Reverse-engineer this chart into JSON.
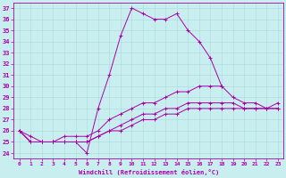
{
  "xlabel": "Windchill (Refroidissement éolien,°C)",
  "background_color": "#c8eef0",
  "grid_color": "#b0dde0",
  "line_color": "#aa00aa",
  "xlim": [
    -0.5,
    23.5
  ],
  "ylim": [
    23.5,
    37.5
  ],
  "yticks": [
    24,
    25,
    26,
    27,
    28,
    29,
    30,
    31,
    32,
    33,
    34,
    35,
    36,
    37
  ],
  "xticks": [
    0,
    1,
    2,
    3,
    4,
    5,
    6,
    7,
    8,
    9,
    10,
    11,
    12,
    13,
    14,
    15,
    16,
    17,
    18,
    19,
    20,
    21,
    22,
    23
  ],
  "series": [
    {
      "x": [
        0,
        1,
        2,
        3,
        4,
        5,
        6,
        7,
        8,
        9,
        10,
        11,
        12,
        13,
        14,
        15,
        16,
        17,
        18
      ],
      "y": [
        26.0,
        25.0,
        25.0,
        25.0,
        25.0,
        25.0,
        24.0,
        28.0,
        31.0,
        34.5,
        37.0,
        36.5,
        36.0,
        36.0,
        36.5,
        35.0,
        34.0,
        32.5,
        30.0
      ]
    },
    {
      "x": [
        0,
        1,
        2,
        3,
        4,
        5,
        6,
        7,
        8,
        9,
        10,
        11,
        12,
        13,
        14,
        15,
        16,
        17,
        18,
        19,
        20,
        21,
        22,
        23
      ],
      "y": [
        26.0,
        25.0,
        25.0,
        25.0,
        25.5,
        25.5,
        25.5,
        26.0,
        27.0,
        27.5,
        28.0,
        28.5,
        28.5,
        29.0,
        29.5,
        29.5,
        30.0,
        30.0,
        30.0,
        29.0,
        28.5,
        28.5,
        28.0,
        28.0
      ]
    },
    {
      "x": [
        0,
        1,
        2,
        3,
        4,
        5,
        6,
        7,
        8,
        9,
        10,
        11,
        12,
        13,
        14,
        15,
        16,
        17,
        18,
        19,
        20,
        21,
        22,
        23
      ],
      "y": [
        26.0,
        25.0,
        25.0,
        25.0,
        25.0,
        25.0,
        25.0,
        25.5,
        26.0,
        26.5,
        27.0,
        27.5,
        27.5,
        28.0,
        28.0,
        28.5,
        28.5,
        28.5,
        28.5,
        28.5,
        28.0,
        28.0,
        28.0,
        28.0
      ]
    },
    {
      "x": [
        0,
        1,
        2,
        3,
        4,
        5,
        6,
        7,
        8,
        9,
        10,
        11,
        12,
        13,
        14,
        15,
        16,
        17,
        18,
        19,
        20,
        21,
        22,
        23
      ],
      "y": [
        26.0,
        25.5,
        25.0,
        25.0,
        25.0,
        25.0,
        25.0,
        25.5,
        26.0,
        26.0,
        26.5,
        27.0,
        27.0,
        27.5,
        27.5,
        28.0,
        28.0,
        28.0,
        28.0,
        28.0,
        28.0,
        28.0,
        28.0,
        28.5
      ]
    }
  ]
}
